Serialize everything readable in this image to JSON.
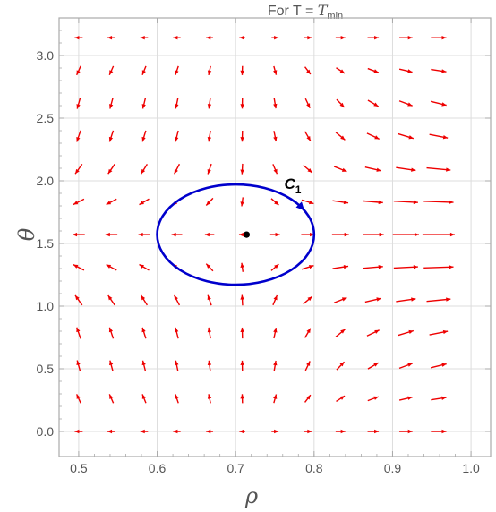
{
  "chart_data": {
    "type": "vector-field",
    "title": {
      "prefix": "For  T = ",
      "symbol": "T",
      "subscript": "min"
    },
    "xlabel": "ρ",
    "ylabel": "θ",
    "xlim": [
      0.475,
      1.025
    ],
    "ylim": [
      -0.2,
      3.3
    ],
    "x_ticks": [
      0.5,
      0.6,
      0.7,
      0.8,
      0.9,
      1.0
    ],
    "x_tick_labels": [
      "0.5",
      "0.6",
      "0.7",
      "0.8",
      "0.9",
      "1.0"
    ],
    "y_ticks": [
      0.0,
      0.5,
      1.0,
      1.5,
      2.0,
      2.5,
      3.0
    ],
    "y_tick_labels": [
      "0.0",
      "0.5",
      "1.0",
      "1.5",
      "2.0",
      "2.5",
      "3.0"
    ],
    "field_x_start": 0.5,
    "field_x_step": 0.0417,
    "field_x_count": 12,
    "field_y_start": 0.0,
    "field_y_step": 0.2618,
    "field_y_count": 13,
    "arrow_color": "#ee0000",
    "contour": {
      "label": "C",
      "label_sub": "1",
      "center": [
        0.7,
        1.5708
      ],
      "radius_rho": 0.1,
      "radius_theta": 0.4,
      "color": "#0000cc"
    },
    "critical_point": {
      "rho": 0.714,
      "theta": 1.5708,
      "color": "#000000"
    },
    "grid": true,
    "frame_color": "#aaaaaa",
    "grid_color": "#dddddd"
  }
}
